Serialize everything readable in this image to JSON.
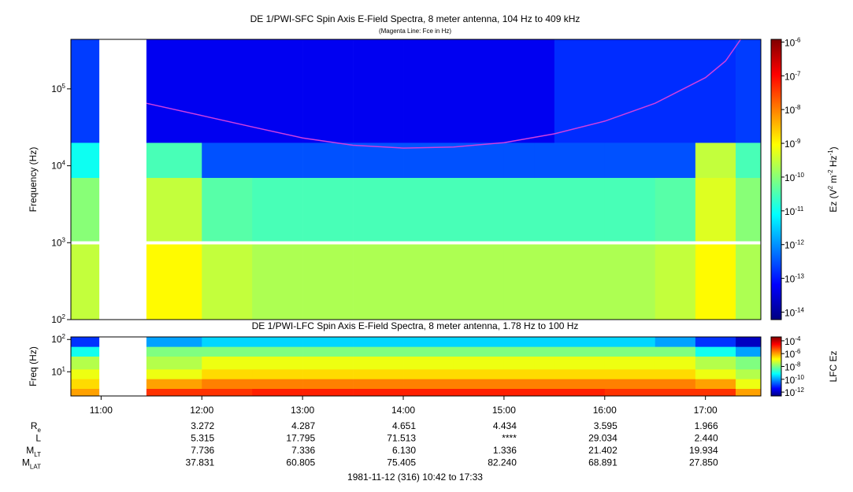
{
  "chart_data": [
    {
      "type": "heatmap",
      "title": "DE 1/PWI-SFC  Spin Axis E-Field Spectra, 8 meter antenna, 104 Hz to 409 kHz",
      "subtitle": "(Magenta Line: Fce in Hz)",
      "y_label": "Frequency (Hz)",
      "z_label": "Ez (V^2 m^-2 Hz^-1)",
      "xlim": [
        10.7,
        17.55
      ],
      "ylim": [
        100,
        440000
      ],
      "log_y": true,
      "yticks": [
        {
          "value": 100,
          "label": "10^2"
        },
        {
          "value": 1000,
          "label": "10^3"
        },
        {
          "value": 10000,
          "label": "10^4"
        },
        {
          "value": 100000,
          "label": "10^5"
        }
      ],
      "x_bins": [
        10.7,
        10.98,
        11.45,
        12,
        12.5,
        13,
        13.5,
        14,
        14.5,
        15,
        15.3,
        15.5,
        16,
        16.5,
        16.9,
        17.3,
        17.55
      ],
      "y_bins": [
        100,
        950,
        1050,
        7000,
        20000,
        440000
      ],
      "values": [
        [
          3e-10,
          null,
          1e-09,
          3e-10,
          2e-10,
          2e-10,
          2e-10,
          2e-10,
          2e-10,
          2e-10,
          2e-10,
          2e-10,
          2e-10,
          3e-10,
          1e-09,
          2e-10
        ],
        [
          null,
          null,
          null,
          null,
          null,
          null,
          null,
          null,
          null,
          null,
          null,
          null,
          null,
          null,
          null,
          null
        ],
        [
          1e-10,
          null,
          3e-10,
          4e-11,
          3e-11,
          3e-11,
          3e-11,
          3e-11,
          3e-11,
          3e-11,
          3e-11,
          3e-11,
          3e-11,
          4e-11,
          5e-10,
          1e-10
        ],
        [
          1e-11,
          null,
          3e-11,
          3e-13,
          3e-13,
          3e-13,
          3e-13,
          3e-13,
          3e-13,
          3e-13,
          3e-13,
          3e-13,
          3e-13,
          3e-13,
          3e-10,
          3e-11
        ],
        [
          2e-13,
          null,
          5e-14,
          5e-14,
          5e-14,
          5e-14,
          5e-14,
          5e-14,
          5e-14,
          5e-14,
          5e-14,
          1.5e-13,
          1.5e-13,
          1.5e-13,
          1.5e-13,
          2e-13
        ]
      ],
      "zlim": [
        1.2e-06,
        6e-15
      ],
      "zticks": [
        {
          "value": 1e-06,
          "label": "10^-6"
        },
        {
          "value": 1e-07,
          "label": "10^-7"
        },
        {
          "value": 1e-08,
          "label": "10^-8"
        },
        {
          "value": 1e-09,
          "label": "10^-9"
        },
        {
          "value": 1e-10,
          "label": "10^-10"
        },
        {
          "value": 1e-11,
          "label": "10^-11"
        },
        {
          "value": 1e-12,
          "label": "10^-12"
        },
        {
          "value": 1e-13,
          "label": "10^-13"
        },
        {
          "value": 1e-14,
          "label": "10^-14"
        }
      ],
      "line": {
        "color": "#d040e0",
        "x": [
          11.45,
          12,
          12.5,
          13,
          13.5,
          14,
          14.5,
          15,
          15.5,
          16,
          16.5,
          17,
          17.2,
          17.35
        ],
        "values": [
          65000,
          45000,
          32000,
          23000,
          18500,
          17000,
          17500,
          20000,
          26000,
          38000,
          65000,
          140000,
          230000,
          440000
        ]
      }
    },
    {
      "type": "heatmap",
      "title": "DE 1/PWI-LFC  Spin Axis E-Field Spectra, 8 meter antenna, 1.78 Hz to 100 Hz",
      "y_label": "Freq (Hz)",
      "z_label": "LFC Ez",
      "xlim": [
        10.7,
        17.55
      ],
      "ylim": [
        1.78,
        120
      ],
      "log_y": true,
      "yticks": [
        {
          "value": 10,
          "label": "10^1"
        },
        {
          "value": 100,
          "label": "10^2"
        }
      ],
      "x_bins": [
        10.7,
        10.98,
        11.45,
        12,
        12.5,
        13,
        13.5,
        14,
        14.5,
        15,
        15.3,
        15.5,
        16,
        16.5,
        16.9,
        17.3,
        17.55
      ],
      "y_bins": [
        1.78,
        3,
        6,
        12,
        30,
        60,
        120
      ],
      "values": [
        [
          1e-06,
          null,
          1e-05,
          1e-05,
          1.5e-05,
          1.5e-05,
          1.5e-05,
          1.5e-05,
          1.5e-05,
          1.5e-05,
          1.5e-05,
          1.5e-05,
          1e-05,
          1e-05,
          1e-05,
          1e-06
        ],
        [
          3e-07,
          null,
          1e-06,
          2e-06,
          2e-06,
          2e-06,
          2e-06,
          2e-06,
          2e-06,
          2e-06,
          2e-06,
          2e-06,
          2e-06,
          2e-06,
          1e-06,
          1e-07
        ],
        [
          1e-07,
          null,
          1e-07,
          3e-07,
          3e-07,
          3e-07,
          3e-07,
          3e-07,
          3e-07,
          3e-07,
          3e-07,
          3e-07,
          3e-07,
          3e-07,
          1e-07,
          3e-08
        ],
        [
          3e-08,
          null,
          3e-08,
          1e-07,
          1e-07,
          1e-07,
          1e-07,
          1e-07,
          1e-07,
          1e-07,
          1e-07,
          1e-07,
          1e-07,
          1e-07,
          3e-08,
          1e-08
        ],
        [
          1e-09,
          null,
          1e-08,
          1e-08,
          1e-08,
          1e-08,
          1e-08,
          1e-08,
          1e-08,
          1e-08,
          1e-08,
          1e-08,
          1e-08,
          1e-08,
          1e-09,
          1e-10
        ],
        [
          1e-11,
          null,
          1e-10,
          3e-10,
          3e-10,
          3e-10,
          3e-10,
          3e-10,
          3e-10,
          3e-10,
          3e-10,
          3e-10,
          3e-10,
          1e-10,
          1e-11,
          1e-12
        ]
      ],
      "zlim": [
        0.0004,
        2.5e-13
      ],
      "zticks": [
        {
          "value": 0.0001,
          "label": "10^-4"
        },
        {
          "value": 1e-06,
          "label": "10^-6"
        },
        {
          "value": 1e-08,
          "label": "10^-8"
        },
        {
          "value": 1e-10,
          "label": "10^-10"
        },
        {
          "value": 1e-12,
          "label": "10^-12"
        }
      ],
      "xticks": [
        {
          "value": 11,
          "label": "11:00"
        },
        {
          "value": 12,
          "label": "12:00"
        },
        {
          "value": 13,
          "label": "13:00"
        },
        {
          "value": 14,
          "label": "14:00"
        },
        {
          "value": 15,
          "label": "15:00"
        },
        {
          "value": 16,
          "label": "16:00"
        },
        {
          "value": 17,
          "label": "17:00"
        }
      ]
    }
  ],
  "ephemeris": {
    "columns": [
      12,
      13,
      14,
      15,
      16,
      17
    ],
    "rows": [
      {
        "label": "R_e",
        "values": [
          "3.272",
          "4.287",
          "4.651",
          "4.434",
          "3.595",
          "1.966"
        ]
      },
      {
        "label": "L",
        "values": [
          "5.315",
          "17.795",
          "71.513",
          "****",
          "29.034",
          "2.440"
        ]
      },
      {
        "label": "M_LT",
        "values": [
          "7.736",
          "7.336",
          "6.130",
          "1.336",
          "21.402",
          "19.934"
        ]
      },
      {
        "label": "M_LAT",
        "values": [
          "37.831",
          "60.805",
          "75.405",
          "82.240",
          "68.891",
          "27.850"
        ]
      }
    ]
  },
  "footer": "1981-11-12 (316) 10:42 to 17:33"
}
